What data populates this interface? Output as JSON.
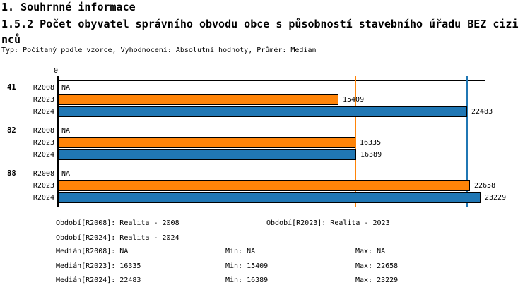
{
  "header": {
    "title": "1. Souhrnné informace",
    "subtitle": "1.5.2 Počet obyvatel správního obvodu obce s působností stavebního úřadu BEZ cizinců",
    "meta": "Typ: Počítaný podle vzorce, Vyhodnocení: Absolutní hodnoty, Průměr: Medián"
  },
  "chart_data": {
    "type": "bar",
    "orientation": "horizontal",
    "title": "1.5.2 Počet obyvatel správního obvodu obce s působností stavebního úřadu BEZ cizinců",
    "x_axis": {
      "zero_label": "0",
      "min": 0,
      "max_estimate": 23500,
      "grid": false
    },
    "categories": [
      "41",
      "82",
      "88"
    ],
    "series": [
      {
        "name": "R2008",
        "color": "#ffffff",
        "values": [
          null,
          null,
          null
        ],
        "labels": [
          "NA",
          "NA",
          "NA"
        ]
      },
      {
        "name": "R2023",
        "color": "#FF8408",
        "values": [
          15409,
          16335,
          22658
        ],
        "labels": [
          "15409",
          "16335",
          "22658"
        ]
      },
      {
        "name": "R2024",
        "color": "#2077B4",
        "values": [
          22483,
          16389,
          23229
        ],
        "labels": [
          "22483",
          "16389",
          "23229"
        ]
      }
    ],
    "reference_lines": [
      {
        "series": "R2023",
        "label": "Medián R2023",
        "value": 16335,
        "color": "#FF8408"
      },
      {
        "series": "R2024",
        "label": "Medián R2024",
        "value": 22483,
        "color": "#2077B4"
      }
    ],
    "legend_position": "bottom"
  },
  "footer": {
    "period_rows": [
      [
        "Období[R2008]: Realita - 2008",
        "Období[R2023]: Realita - 2023"
      ],
      [
        "Období[R2024]: Realita - 2024"
      ]
    ],
    "stat_rows": [
      [
        "Medián[R2008]: NA",
        "Min: NA",
        "Max: NA"
      ],
      [
        "Medián[R2023]: 16335",
        "Min: 15409",
        "Max: 22658"
      ],
      [
        "Medián[R2024]: 22483",
        "Min: 16389",
        "Max: 23229"
      ]
    ]
  }
}
